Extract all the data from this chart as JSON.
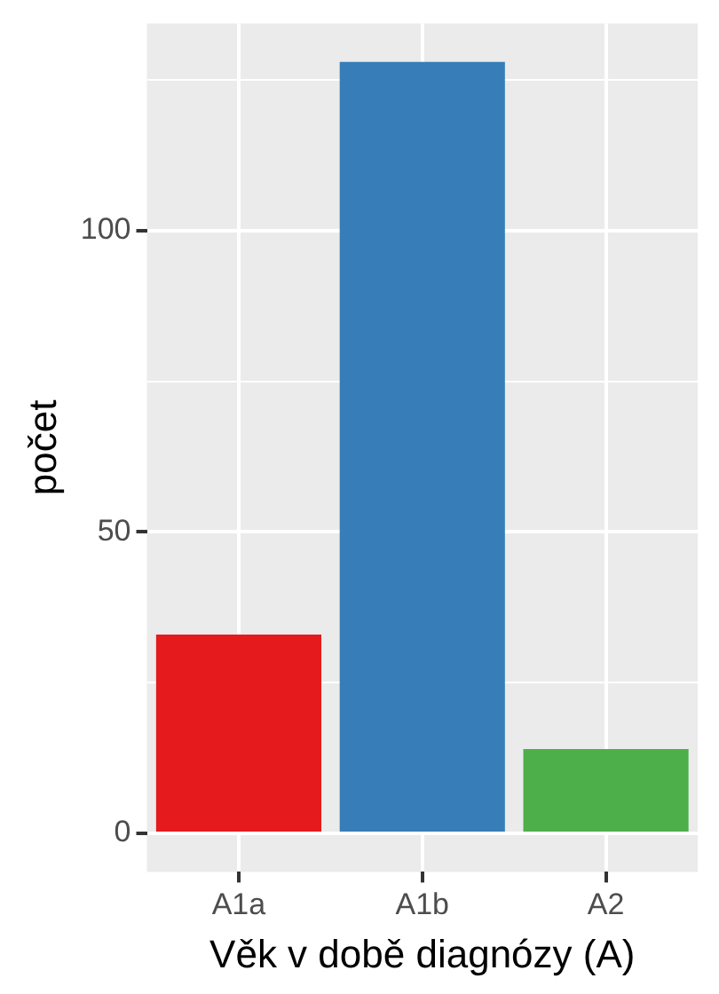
{
  "chart_data": {
    "type": "bar",
    "xlabel": "Věk v době diagnózy (A)",
    "ylabel": "počet",
    "categories": [
      "A1a",
      "A1b",
      "A2"
    ],
    "values": [
      33,
      128,
      14
    ],
    "colors": [
      "#e41a1c",
      "#377eb8",
      "#4daf4a"
    ],
    "ylim": [
      -6.4,
      134.4
    ],
    "yticks": [
      0,
      {
        "value": 25,
        "label": null
      },
      50,
      {
        "value": 75,
        "label": null
      },
      100,
      {
        "value": 125,
        "label": null
      }
    ],
    "grid": true
  }
}
